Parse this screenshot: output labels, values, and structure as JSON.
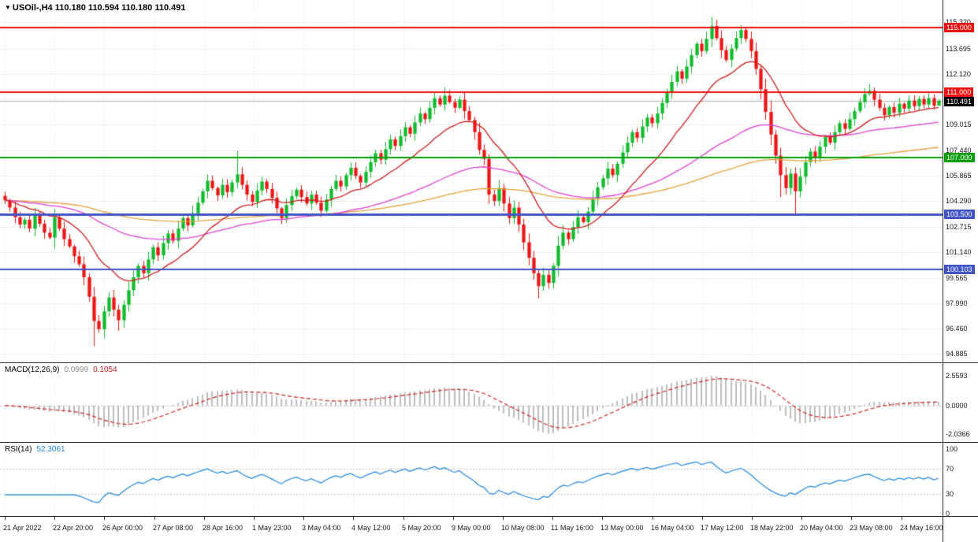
{
  "title": {
    "marker": "▼",
    "symbol": "USOil-,H4",
    "ohlc": "110.180 110.594 110.180 110.491"
  },
  "indicator_labels": {
    "macd_name": "MACD(12,26,9)",
    "macd_value": "0.0999",
    "macd_signal_value": "0.1054",
    "rsi_name": "RSI(14)",
    "rsi_value": "52.3061"
  },
  "grid": {
    "h_color": "#ededed",
    "v_color": "rgba(0,0,0,0.10)"
  },
  "chart_data": {
    "type": "candlestick",
    "symbol": "USOil-",
    "timeframe": "H4",
    "up_color": "#0fbc2c",
    "down_color": "#ee1515",
    "price_view": [
      94.35,
      116.7
    ],
    "first_open": 104.62,
    "closes": [
      104.35,
      103.9,
      103.3,
      102.85,
      103.15,
      102.6,
      103.4,
      102.9,
      102.35,
      102.05,
      103.3,
      102.6,
      101.95,
      101.5,
      100.9,
      100.4,
      99.6,
      98.4,
      96.9,
      96.4,
      97.5,
      98.35,
      97.6,
      96.95,
      97.9,
      98.8,
      99.6,
      100.3,
      99.85,
      100.7,
      101.45,
      100.95,
      101.7,
      102.3,
      101.85,
      102.6,
      103.25,
      102.8,
      103.55,
      104.2,
      104.9,
      105.55,
      105.1,
      104.65,
      105.3,
      104.85,
      105.45,
      105.95,
      105.3,
      104.7,
      104.25,
      104.95,
      105.5,
      105.05,
      104.5,
      103.85,
      103.25,
      104.05,
      104.6,
      105.0,
      104.55,
      104.15,
      104.7,
      104.2,
      103.7,
      104.4,
      105.05,
      105.55,
      105.2,
      105.9,
      106.35,
      105.85,
      105.45,
      106.1,
      106.7,
      107.25,
      106.85,
      107.5,
      108.1,
      107.7,
      108.3,
      108.85,
      108.45,
      109.15,
      109.7,
      109.35,
      110.05,
      110.65,
      110.25,
      110.8,
      110.4,
      110.05,
      110.55,
      109.85,
      109.3,
      108.55,
      107.45,
      106.9,
      104.7,
      104.3,
      105.1,
      104.15,
      103.25,
      103.9,
      102.85,
      101.75,
      100.8,
      99.85,
      99.05,
      99.75,
      99.25,
      100.3,
      101.55,
      102.35,
      101.95,
      102.7,
      103.3,
      103.0,
      103.65,
      104.45,
      105.15,
      105.7,
      106.3,
      105.9,
      106.6,
      107.3,
      107.9,
      108.55,
      108.2,
      108.9,
      109.45,
      109.1,
      109.7,
      110.35,
      111.0,
      111.65,
      112.3,
      111.85,
      112.6,
      113.3,
      114.0,
      113.55,
      114.3,
      115.1,
      114.35,
      113.6,
      113.0,
      113.7,
      114.35,
      114.85,
      114.3,
      113.55,
      112.45,
      111.2,
      109.8,
      108.4,
      107.1,
      105.9,
      105.1,
      106.0,
      104.9,
      105.8,
      106.7,
      107.35,
      106.95,
      107.65,
      108.25,
      107.9,
      108.55,
      109.1,
      108.75,
      109.35,
      109.85,
      110.4,
      110.9,
      111.1,
      110.55,
      110.05,
      109.6,
      110.1,
      109.75,
      110.3,
      110.0,
      110.5,
      110.15,
      110.6,
      110.25,
      110.65,
      110.18,
      110.491
    ],
    "wick_extremes": [
      {
        "index": 18,
        "low": 95.35
      },
      {
        "index": 23,
        "low": 96.3
      },
      {
        "index": 47,
        "high": 107.4
      },
      {
        "index": 89,
        "high": 111.32
      },
      {
        "index": 108,
        "low": 98.3
      },
      {
        "index": 143,
        "high": 115.66
      },
      {
        "index": 149,
        "high": 115.15
      },
      {
        "index": 157,
        "low": 104.55
      },
      {
        "index": 160,
        "low": 103.45
      },
      {
        "index": 175,
        "high": 111.52
      }
    ],
    "last_candle": {
      "open": 110.18,
      "high": 110.594,
      "low": 110.18,
      "close": 110.491
    },
    "overlays": [
      {
        "name": "ma-fast",
        "period": 18,
        "color": "#d01a1a"
      },
      {
        "name": "ma-medium",
        "period": 70,
        "color": "#dd3fd3"
      },
      {
        "name": "ma-slow",
        "period": 160,
        "color": "#e2a23b"
      }
    ],
    "horizontal_lines": [
      {
        "label": "115.000",
        "price": 115.0,
        "color": "#ee1111",
        "width": 2
      },
      {
        "label": "111.000",
        "price": 111.0,
        "color": "#ee1111",
        "width": 2
      },
      {
        "label": "107.000",
        "price": 107.0,
        "color": "#0a9e0a",
        "width": 2
      },
      {
        "label": "103.500",
        "price": 103.5,
        "color": "#4053c8",
        "width": 3
      },
      {
        "label": "100.103",
        "price": 100.103,
        "color": "#4053c8",
        "width": 2
      }
    ],
    "current_price": {
      "label": "110.491",
      "value": 110.491,
      "line_color": "#b0b0b0",
      "badge_color": "#000000"
    },
    "y_tick_labels": [
      "115.320",
      "113.695",
      "112.120",
      "110.590",
      "109.015",
      "107.440",
      "105.865",
      "104.290",
      "102.715",
      "101.140",
      "99.565",
      "97.990",
      "96.460",
      "94.885"
    ],
    "hidden_y_ticks": [
      "110.590"
    ],
    "x_tick_labels": [
      "21 Apr 2022",
      "22 Apr 20:00",
      "26 Apr 00:00",
      "27 Apr 08:00",
      "28 Apr 16:00",
      "1 May 23:00",
      "3 May 04:00",
      "4 May 12:00",
      "5 May 20:00",
      "9 May 00:00",
      "10 May 08:00",
      "11 May 16:00",
      "13 May 00:00",
      "16 May 04:00",
      "17 May 12:00",
      "18 May 22:00",
      "20 May 04:00",
      "23 May 08:00",
      "24 May 16:00"
    ],
    "macd": {
      "fast": 12,
      "slow": 26,
      "signal": 9,
      "histogram_color": "#bdbdbd",
      "signal_color": "#d42020",
      "zero_line_color": "#bbbbbb",
      "axis_labels": [
        "2.5593",
        "0.0000",
        "-2.0366"
      ]
    },
    "rsi": {
      "period": 14,
      "color": "#1d86e0",
      "levels": [
        30,
        70
      ],
      "level_color": "#c8c8c8",
      "view": [
        -4,
        110
      ],
      "axis_labels": [
        "100",
        "70",
        "30",
        "0"
      ]
    }
  }
}
